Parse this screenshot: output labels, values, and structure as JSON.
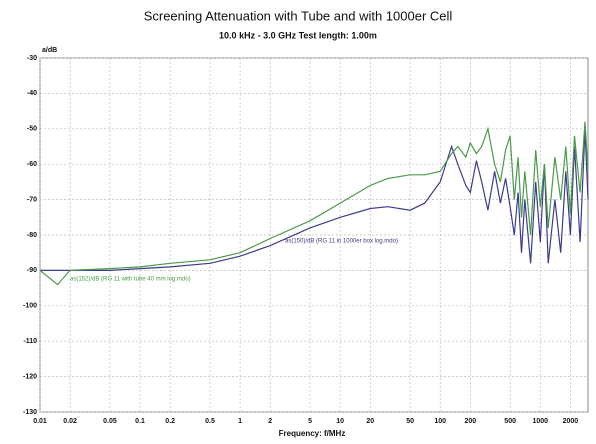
{
  "chart_data": {
    "type": "line",
    "title": "Screening Attenuation with Tube and with 1000er Cell",
    "subtitle": "10.0 kHz - 3.0 GHz   Test length: 1.00m",
    "y_label": "a/dB",
    "x_label": "Frequency: f/MHz",
    "log_x": true,
    "grid": true,
    "xlim": [
      0.01,
      3000
    ],
    "xticks": [
      0.01,
      0.02,
      0.05,
      0.1,
      0.2,
      0.5,
      1,
      2,
      5,
      10,
      20,
      50,
      100,
      200,
      500,
      1000,
      2000
    ],
    "ylim": [
      -130,
      -30
    ],
    "yticks": [
      -130,
      -120,
      -110,
      -100,
      -90,
      -80,
      -70,
      -60,
      -50,
      -40,
      -30
    ],
    "x": [
      0.01,
      0.015,
      0.02,
      0.05,
      0.1,
      0.2,
      0.5,
      1,
      2,
      5,
      10,
      20,
      30,
      50,
      70,
      100,
      130,
      150,
      180,
      200,
      230,
      260,
      300,
      350,
      400,
      450,
      500,
      550,
      600,
      650,
      700,
      800,
      900,
      1000,
      1100,
      1200,
      1400,
      1600,
      1800,
      2000,
      2200,
      2500,
      2800,
      3000
    ],
    "series": [
      {
        "name": "as(150)/dB (RG 11 in 1000er box log.mdo)",
        "color": "#3b3b8c",
        "values": [
          -90,
          -90,
          -90,
          -90,
          -89.5,
          -89,
          -88,
          -86,
          -83,
          -78,
          -75,
          -72.5,
          -72,
          -73,
          -71,
          -65,
          -55,
          -60,
          -66,
          -68,
          -59,
          -65,
          -73,
          -62,
          -71,
          -64,
          -72,
          -80,
          -68,
          -85,
          -70,
          -88,
          -65,
          -82,
          -60,
          -88,
          -70,
          -85,
          -62,
          -80,
          -55,
          -82,
          -50,
          -70
        ]
      },
      {
        "name": "as(152)/dB (RG 11 with tube 40 mm log.mdo)",
        "color": "#4a9a4a",
        "values": [
          -90,
          -94,
          -90,
          -89.5,
          -89,
          -88,
          -87,
          -85,
          -81,
          -76,
          -71,
          -66,
          -64,
          -63,
          -63,
          -62,
          -57,
          -55,
          -58,
          -54,
          -57,
          -55,
          -50,
          -60,
          -65,
          -56,
          -52,
          -70,
          -58,
          -75,
          -62,
          -80,
          -56,
          -72,
          -60,
          -78,
          -58,
          -70,
          -55,
          -74,
          -52,
          -68,
          -48,
          -62
        ]
      }
    ]
  }
}
